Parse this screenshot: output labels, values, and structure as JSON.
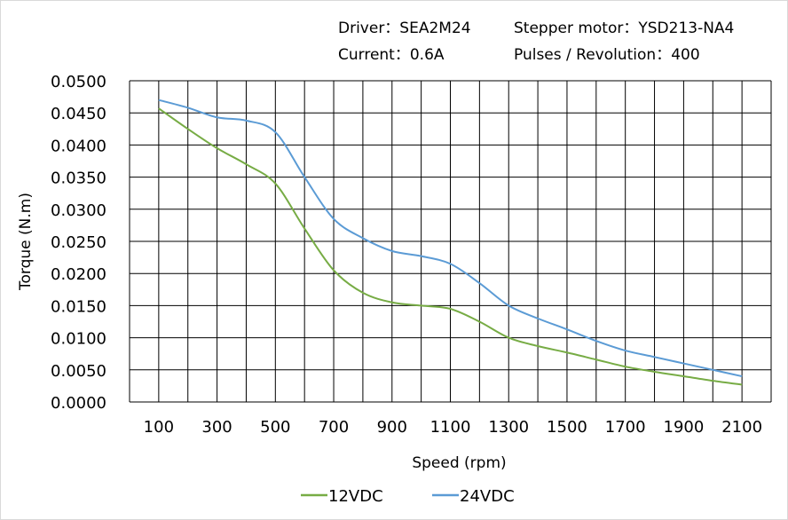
{
  "header": {
    "driver": "Driver：SEA2M24",
    "motor": "Stepper motor：YSD213-NA4",
    "current": "Current：0.6A",
    "pulses": "Pulses / Revolution：400"
  },
  "chart_data": {
    "type": "line",
    "xlabel": "Speed  (rpm)",
    "ylabel": "Torque (N.m)",
    "xlim": [
      0,
      2200
    ],
    "ylim": [
      0,
      0.05
    ],
    "grid": true,
    "legend_placement": "bottom",
    "x_ticks": [
      100,
      300,
      500,
      700,
      900,
      1100,
      1300,
      1500,
      1700,
      1900,
      2100
    ],
    "y_ticks": [
      "0.0000",
      "0.0050",
      "0.0100",
      "0.0150",
      "0.0200",
      "0.0250",
      "0.0300",
      "0.0350",
      "0.0400",
      "0.0450",
      "0.0500"
    ],
    "x": [
      100,
      200,
      300,
      400,
      500,
      600,
      700,
      800,
      900,
      1000,
      1100,
      1200,
      1300,
      1400,
      1500,
      1600,
      1700,
      1800,
      1900,
      2000,
      2100
    ],
    "series": [
      {
        "name": "12VDC",
        "color": "#77ac45",
        "values": [
          0.0457,
          0.0425,
          0.0395,
          0.037,
          0.034,
          0.027,
          0.0205,
          0.017,
          0.0155,
          0.015,
          0.0145,
          0.0125,
          0.01,
          0.0087,
          0.0077,
          0.0066,
          0.0055,
          0.0047,
          0.004,
          0.0033,
          0.0027
        ]
      },
      {
        "name": "24VDC",
        "color": "#5b9bd5",
        "values": [
          0.047,
          0.0458,
          0.0443,
          0.0438,
          0.042,
          0.035,
          0.0285,
          0.0255,
          0.0235,
          0.0227,
          0.0215,
          0.0185,
          0.015,
          0.013,
          0.0113,
          0.0095,
          0.008,
          0.007,
          0.006,
          0.005,
          0.004
        ]
      }
    ]
  }
}
